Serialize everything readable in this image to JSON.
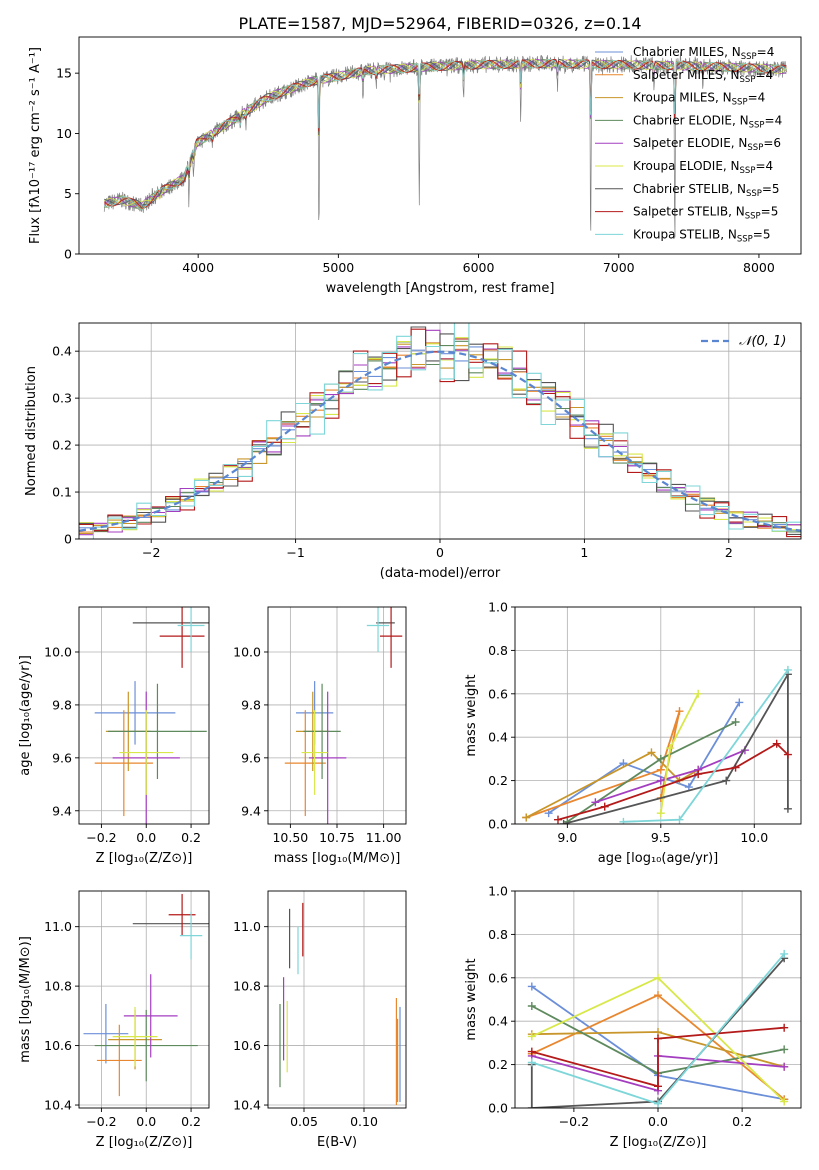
{
  "figure": {
    "title": "PLATE=1587, MJD=52964, FIBERID=0326, z=0.14"
  },
  "models": [
    {
      "name": "Chabrier MILES, N",
      "sub": "SSP",
      "suffix": "=4",
      "color": "#6c8fd9"
    },
    {
      "name": "Salpeter MILES, N",
      "sub": "SSP",
      "suffix": "=4",
      "color": "#e8872f"
    },
    {
      "name": "Kroupa MILES, N",
      "sub": "SSP",
      "suffix": "=4",
      "color": "#c8962a"
    },
    {
      "name": "Chabrier ELODIE, N",
      "sub": "SSP",
      "suffix": "=4",
      "color": "#5e8a5e"
    },
    {
      "name": "Salpeter ELODIE, N",
      "sub": "SSP",
      "suffix": "=6",
      "color": "#a43ec0"
    },
    {
      "name": "Kroupa ELODIE, N",
      "sub": "SSP",
      "suffix": "=4",
      "color": "#d8e84a"
    },
    {
      "name": "Chabrier STELIB, N",
      "sub": "SSP",
      "suffix": "=5",
      "color": "#555555"
    },
    {
      "name": "Salpeter STELIB, N",
      "sub": "SSP",
      "suffix": "=5",
      "color": "#b41a1a"
    },
    {
      "name": "Kroupa STELIB, N",
      "sub": "SSP",
      "suffix": "=5",
      "color": "#7ed6d9"
    }
  ],
  "chart_data": [
    {
      "id": "spectrum",
      "type": "line",
      "xlabel": "wavelength [Angstrom, rest frame]",
      "ylabel": "Flux [fλ10⁻¹⁷ erg cm⁻² s⁻¹ A⁻¹]",
      "xlim": [
        3150,
        8300
      ],
      "ylim": [
        0,
        18
      ],
      "xticks": [
        4000,
        5000,
        6000,
        7000,
        8000
      ],
      "yticks": [
        0,
        5,
        10,
        15
      ],
      "legend_position": "upper-right",
      "data_color": "#808080",
      "continuum_nodes": {
        "x": [
          3350,
          3450,
          3600,
          3750,
          3900,
          3990,
          4100,
          4300,
          4500,
          4800,
          5200,
          5600,
          6000,
          6500,
          7000,
          7500,
          8000,
          8200
        ],
        "y": [
          4.2,
          4.5,
          4.0,
          5.3,
          6.3,
          9.2,
          10.0,
          11.5,
          13.0,
          14.3,
          15.2,
          15.5,
          15.7,
          15.8,
          15.7,
          15.6,
          15.4,
          15.3
        ]
      },
      "absorption_lines": [
        {
          "x": 3727,
          "depth": 0.6
        },
        {
          "x": 3934,
          "depth": 3.2
        },
        {
          "x": 3968,
          "depth": 2.2
        },
        {
          "x": 4102,
          "depth": 1.2
        },
        {
          "x": 4300,
          "depth": 1.6
        },
        {
          "x": 4340,
          "depth": 1.0
        },
        {
          "x": 4861,
          "depth": 13.0
        },
        {
          "x": 5175,
          "depth": 2.3
        },
        {
          "x": 5270,
          "depth": 1.2
        },
        {
          "x": 5577,
          "depth": 12.0
        },
        {
          "x": 5893,
          "depth": 3.0
        },
        {
          "x": 6300,
          "depth": 5.0
        },
        {
          "x": 6563,
          "depth": 2.0
        },
        {
          "x": 6800,
          "depth": 15.0
        },
        {
          "x": 7250,
          "depth": 2.0
        },
        {
          "x": 7400,
          "depth": 15.0
        },
        {
          "x": 7600,
          "depth": 1.5
        }
      ]
    },
    {
      "id": "residuals",
      "type": "step",
      "xlabel": "(data-model)/error",
      "ylabel": "Normed distribution",
      "xlim": [
        -2.5,
        2.5
      ],
      "ylim": [
        0,
        0.46
      ],
      "xticks": [
        -2,
        -1,
        0,
        1,
        2
      ],
      "yticks": [
        0.0,
        0.1,
        0.2,
        0.3,
        0.4
      ],
      "grid": true,
      "legend_position": "upper-right",
      "reference_label": "𝒩(0, 1)",
      "reference_color": "#5a86d1",
      "bin_width": 0.1,
      "bin_start": -2.5,
      "jitter_series": [
        [
          0.015,
          -0.02,
          0.01,
          0.03,
          -0.01,
          0.02,
          -0.03,
          0.015,
          -0.005,
          0.025,
          -0.02,
          0.01,
          0.02,
          -0.015,
          0.005,
          -0.025,
          0.03,
          -0.01,
          0.0,
          0.02,
          -0.02,
          0.015,
          -0.03,
          0.01,
          0.025,
          -0.005,
          -0.02,
          0.03,
          0.0,
          -0.015,
          0.02,
          -0.01,
          0.025,
          -0.02,
          0.01,
          -0.03,
          0.015,
          0.005,
          -0.01,
          0.02,
          -0.025,
          0.0,
          0.015,
          -0.02,
          0.03,
          -0.01,
          0.005,
          -0.015,
          0.02,
          -0.005
        ],
        [
          -0.01,
          0.02,
          -0.025,
          0.005,
          0.03,
          -0.015,
          0.01,
          -0.02,
          0.025,
          0.0,
          -0.03,
          0.015,
          -0.005,
          0.02,
          -0.01,
          0.03,
          -0.02,
          0.005,
          0.015,
          -0.025,
          0.01,
          -0.005,
          0.02,
          -0.015,
          0.0,
          0.025,
          -0.01,
          0.005,
          -0.03,
          0.02,
          -0.015,
          0.01,
          -0.005,
          0.03,
          -0.02,
          0.015,
          -0.01,
          0.025,
          0.0,
          -0.02,
          0.01,
          0.02,
          -0.025,
          0.005,
          -0.01,
          0.015,
          -0.03,
          0.02,
          0.0,
          0.01
        ]
      ]
    },
    {
      "id": "age-vs-Z",
      "type": "errorbar",
      "xlabel": "Z [log₁₀(Z/Z⊙)]",
      "ylabel": "age  [log₁₀(age/yr)]",
      "xlim": [
        -0.3,
        0.28
      ],
      "ylim": [
        9.35,
        10.17
      ],
      "xticks": [
        -0.2,
        0.0,
        0.2
      ],
      "xticklabels": [
        "−0.2",
        "0.0",
        "0.2"
      ],
      "yticks": [
        9.4,
        9.6,
        9.8,
        10.0
      ],
      "yticklabels": [
        "9.4",
        "9.6",
        "9.8",
        "10.0"
      ],
      "grid": true,
      "points": [
        {
          "model": 0,
          "x": -0.05,
          "xerr": 0.18,
          "y": 9.77,
          "yerr": 0.12
        },
        {
          "model": 1,
          "x": -0.1,
          "xerr": 0.13,
          "y": 9.58,
          "yerr": 0.2
        },
        {
          "model": 2,
          "x": -0.08,
          "xerr": 0.1,
          "y": 9.7,
          "yerr": 0.15
        },
        {
          "model": 3,
          "x": 0.05,
          "xerr": 0.22,
          "y": 9.7,
          "yerr": 0.18
        },
        {
          "model": 4,
          "x": 0.0,
          "xerr": 0.15,
          "y": 9.6,
          "yerr": 0.25
        },
        {
          "model": 5,
          "x": 0.0,
          "xerr": 0.12,
          "y": 9.62,
          "yerr": 0.16
        },
        {
          "model": 6,
          "x": 0.11,
          "xerr": 0.17,
          "y": 10.11,
          "yerr": 0.0
        },
        {
          "model": 7,
          "x": 0.16,
          "xerr": 0.1,
          "y": 10.06,
          "yerr": 0.12
        },
        {
          "model": 8,
          "x": 0.2,
          "xerr": 0.06,
          "y": 10.1,
          "yerr": 0.1
        }
      ]
    },
    {
      "id": "age-vs-mass",
      "type": "errorbar",
      "xlabel": "mass [log₁₀(M/M⊙)]",
      "ylabel": "",
      "xlim": [
        10.38,
        11.12
      ],
      "ylim": [
        9.35,
        10.17
      ],
      "xticks": [
        10.5,
        10.75,
        11.0
      ],
      "xticklabels": [
        "10.50",
        "10.75",
        "11.00"
      ],
      "yticks": [
        9.4,
        9.6,
        9.8,
        10.0
      ],
      "yticklabels": [
        "9.4",
        "9.6",
        "9.8",
        "10.0"
      ],
      "grid": true,
      "points": [
        {
          "model": 0,
          "x": 10.63,
          "xerr": 0.1,
          "y": 9.77,
          "yerr": 0.12
        },
        {
          "model": 1,
          "x": 10.58,
          "xerr": 0.11,
          "y": 9.58,
          "yerr": 0.2
        },
        {
          "model": 2,
          "x": 10.62,
          "xerr": 0.09,
          "y": 9.7,
          "yerr": 0.15
        },
        {
          "model": 3,
          "x": 10.67,
          "xerr": 0.1,
          "y": 9.7,
          "yerr": 0.18
        },
        {
          "model": 4,
          "x": 10.7,
          "xerr": 0.1,
          "y": 9.6,
          "yerr": 0.25
        },
        {
          "model": 5,
          "x": 10.63,
          "xerr": 0.07,
          "y": 9.62,
          "yerr": 0.16
        },
        {
          "model": 6,
          "x": 11.01,
          "xerr": 0.05,
          "y": 10.11,
          "yerr": 0.0
        },
        {
          "model": 7,
          "x": 11.04,
          "xerr": 0.06,
          "y": 10.06,
          "yerr": 0.12
        },
        {
          "model": 8,
          "x": 10.97,
          "xerr": 0.06,
          "y": 10.1,
          "yerr": 0.1
        }
      ]
    },
    {
      "id": "weight-vs-age",
      "type": "line",
      "xlabel": "age  [log₁₀(age/yr)]",
      "ylabel": "mass weight",
      "xlim": [
        8.72,
        10.25
      ],
      "ylim": [
        0,
        1.0
      ],
      "xticks": [
        9.0,
        9.5,
        10.0
      ],
      "xticklabels": [
        "9.0",
        "9.5",
        "10.0"
      ],
      "yticks": [
        0.0,
        0.2,
        0.4,
        0.6,
        0.8,
        1.0
      ],
      "yticklabels": [
        "0.0",
        "0.2",
        "0.4",
        "0.6",
        "0.8",
        "1.0"
      ],
      "grid": true,
      "series": [
        {
          "model": 0,
          "x": [
            8.9,
            9.3,
            9.65,
            9.92
          ],
          "y": [
            0.05,
            0.28,
            0.17,
            0.56
          ]
        },
        {
          "model": 1,
          "x": [
            8.78,
            9.5,
            9.6,
            9.5
          ],
          "y": [
            0.03,
            0.25,
            0.52,
            0.12
          ]
        },
        {
          "model": 2,
          "x": [
            8.78,
            9.45,
            9.6,
            9.7
          ],
          "y": [
            0.03,
            0.33,
            0.2,
            0.25
          ]
        },
        {
          "model": 3,
          "x": [
            9.0,
            9.5,
            9.9
          ],
          "y": [
            0.01,
            0.3,
            0.47
          ]
        },
        {
          "model": 4,
          "x": [
            9.15,
            9.5,
            9.7,
            9.95
          ],
          "y": [
            0.1,
            0.2,
            0.25,
            0.34
          ]
        },
        {
          "model": 5,
          "x": [
            9.5,
            9.55,
            9.7
          ],
          "y": [
            0.05,
            0.35,
            0.6
          ]
        },
        {
          "model": 6,
          "x": [
            8.98,
            9.85,
            10.18,
            10.18
          ],
          "y": [
            0.0,
            0.2,
            0.69,
            0.07
          ]
        },
        {
          "model": 7,
          "x": [
            8.95,
            9.2,
            9.7,
            9.9,
            10.12,
            10.18
          ],
          "y": [
            0.02,
            0.08,
            0.23,
            0.26,
            0.37,
            0.32
          ]
        },
        {
          "model": 8,
          "x": [
            9.3,
            9.6,
            10.18
          ],
          "y": [
            0.01,
            0.02,
            0.71
          ]
        }
      ]
    },
    {
      "id": "mass-vs-Z",
      "type": "errorbar",
      "xlabel": "Z [log₁₀(Z/Z⊙)]",
      "ylabel": "mass [log₁₀(M/M⊙)]",
      "xlim": [
        -0.3,
        0.28
      ],
      "ylim": [
        10.39,
        11.12
      ],
      "xticks": [
        -0.2,
        0.0,
        0.2
      ],
      "xticklabels": [
        "−0.2",
        "0.0",
        "0.2"
      ],
      "yticks": [
        10.4,
        10.6,
        10.8,
        11.0
      ],
      "yticklabels": [
        "10.4",
        "10.6",
        "10.8",
        "11.0"
      ],
      "grid": true,
      "points": [
        {
          "model": 0,
          "x": -0.18,
          "xerr": 0.1,
          "y": 10.64,
          "yerr": 0.1
        },
        {
          "model": 1,
          "x": -0.12,
          "xerr": 0.1,
          "y": 10.55,
          "yerr": 0.12
        },
        {
          "model": 2,
          "x": -0.05,
          "xerr": 0.12,
          "y": 10.62,
          "yerr": 0.1
        },
        {
          "model": 3,
          "x": 0.0,
          "xerr": 0.23,
          "y": 10.6,
          "yerr": 0.12
        },
        {
          "model": 4,
          "x": 0.02,
          "xerr": 0.12,
          "y": 10.7,
          "yerr": 0.14
        },
        {
          "model": 5,
          "x": -0.05,
          "xerr": 0.1,
          "y": 10.63,
          "yerr": 0.1
        },
        {
          "model": 6,
          "x": 0.11,
          "xerr": 0.17,
          "y": 11.01,
          "yerr": 0.0
        },
        {
          "model": 7,
          "x": 0.16,
          "xerr": 0.06,
          "y": 11.04,
          "yerr": 0.07
        },
        {
          "model": 8,
          "x": 0.2,
          "xerr": 0.05,
          "y": 10.97,
          "yerr": 0.08
        }
      ]
    },
    {
      "id": "mass-vs-EBV",
      "type": "errorbar",
      "xlabel": "E(B-V)",
      "ylabel": "",
      "xlim": [
        0.02,
        0.135
      ],
      "ylim": [
        10.39,
        11.12
      ],
      "xticks": [
        0.05,
        0.1
      ],
      "xticklabels": [
        "0.05",
        "0.10"
      ],
      "yticks": [
        10.4,
        10.6,
        10.8,
        11.0
      ],
      "yticklabels": [
        "10.4",
        "10.6",
        "10.8",
        "11.0"
      ],
      "grid": true,
      "points": [
        {
          "model": 0,
          "x": 0.13,
          "xerr": 0.0,
          "y": 10.57,
          "yerr": 0.16
        },
        {
          "model": 1,
          "x": 0.127,
          "xerr": 0.0,
          "y": 10.58,
          "yerr": 0.18
        },
        {
          "model": 2,
          "x": 0.128,
          "xerr": 0.0,
          "y": 10.55,
          "yerr": 0.14
        },
        {
          "model": 3,
          "x": 0.03,
          "xerr": 0.0,
          "y": 10.6,
          "yerr": 0.14
        },
        {
          "model": 4,
          "x": 0.033,
          "xerr": 0.0,
          "y": 10.69,
          "yerr": 0.14
        },
        {
          "model": 5,
          "x": 0.036,
          "xerr": 0.0,
          "y": 10.63,
          "yerr": 0.12
        },
        {
          "model": 6,
          "x": 0.038,
          "xerr": 0.0,
          "y": 10.96,
          "yerr": 0.1
        },
        {
          "model": 7,
          "x": 0.049,
          "xerr": 0.0,
          "y": 10.99,
          "yerr": 0.09
        },
        {
          "model": 8,
          "x": 0.045,
          "xerr": 0.0,
          "y": 10.92,
          "yerr": 0.08
        }
      ]
    },
    {
      "id": "weight-vs-Z",
      "type": "line",
      "xlabel": "Z [log₁₀(Z/Z⊙)]",
      "ylabel": "mass weight",
      "xlim": [
        -0.34,
        0.34
      ],
      "ylim": [
        0,
        1.0
      ],
      "xticks": [
        -0.2,
        0.0,
        0.2
      ],
      "xticklabels": [
        "−0.2",
        "0.0",
        "0.2"
      ],
      "yticks": [
        0.0,
        0.2,
        0.4,
        0.6,
        0.8,
        1.0
      ],
      "yticklabels": [
        "0.0",
        "0.2",
        "0.4",
        "0.6",
        "0.8",
        "1.0"
      ],
      "grid": true,
      "series": [
        {
          "model": 0,
          "x": [
            -0.3,
            0.0,
            0.3
          ],
          "y": [
            0.56,
            0.15,
            0.04
          ]
        },
        {
          "model": 1,
          "x": [
            -0.3,
            0.0,
            0.3
          ],
          "y": [
            0.25,
            0.52,
            0.04
          ]
        },
        {
          "model": 2,
          "x": [
            -0.3,
            0.0,
            0.3
          ],
          "y": [
            0.34,
            0.35,
            0.19
          ]
        },
        {
          "model": 3,
          "x": [
            -0.3,
            0.0,
            0.3
          ],
          "y": [
            0.47,
            0.16,
            0.27
          ]
        },
        {
          "model": 4,
          "x": [
            -0.3,
            0.0,
            0.0,
            0.3
          ],
          "y": [
            0.24,
            0.08,
            0.24,
            0.19
          ]
        },
        {
          "model": 5,
          "x": [
            -0.3,
            0.0,
            0.3
          ],
          "y": [
            0.33,
            0.6,
            0.03
          ]
        },
        {
          "model": 6,
          "x": [
            -0.3,
            -0.3,
            0.0,
            0.3
          ],
          "y": [
            0.2,
            0.0,
            0.03,
            0.69
          ]
        },
        {
          "model": 7,
          "x": [
            -0.3,
            0.0,
            0.0,
            0.3
          ],
          "y": [
            0.26,
            0.1,
            0.32,
            0.37
          ]
        },
        {
          "model": 8,
          "x": [
            -0.3,
            0.0,
            0.3
          ],
          "y": [
            0.21,
            0.02,
            0.71
          ]
        }
      ]
    }
  ]
}
